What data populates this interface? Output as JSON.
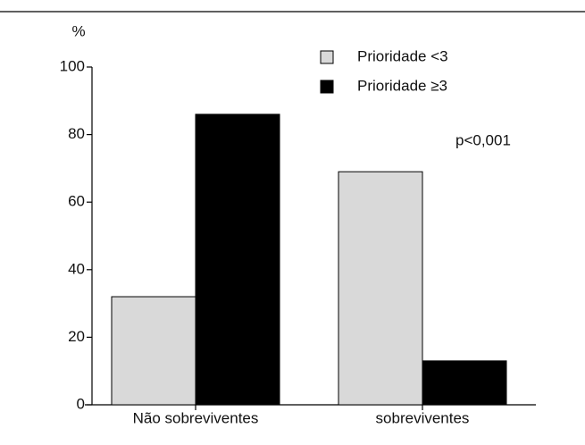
{
  "chart_data": {
    "type": "bar",
    "ylabel": "%",
    "categories": [
      "Não sobreviventes",
      "sobreviventes"
    ],
    "series": [
      {
        "name": "Prioridade <3",
        "color": "#d9d9d9",
        "values": [
          32,
          69
        ]
      },
      {
        "name": "Prioridade ≥3",
        "color": "#000000",
        "values": [
          86,
          13
        ]
      }
    ],
    "annotation": "p<0,001",
    "ylim": [
      0,
      100
    ],
    "yticks": [
      0,
      20,
      40,
      60,
      80,
      100
    ],
    "grid": false
  }
}
